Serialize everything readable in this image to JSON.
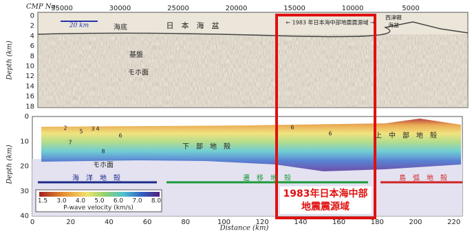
{
  "top_panel": {
    "x_axis_label": "CMP No.",
    "x_ticks": [
      35000,
      30000,
      25000,
      20000,
      15000,
      10000,
      5000
    ],
    "y_axis_label": "Depth (km)",
    "y_ticks": [
      0,
      2,
      4,
      6,
      8,
      10,
      12,
      14,
      16,
      18
    ],
    "scale_bar": "20 km",
    "labels": {
      "seafloor": "海底",
      "basin": "日　本　海　盆",
      "basement": "基盤",
      "moho": "モホ面",
      "source_area": "← 1983 年日本海中部地震震源域 →",
      "west_tsugaru": "西津軽",
      "west_tsugaru_2": "海盆"
    }
  },
  "bottom_panel": {
    "x_axis_label": "Distance (km)",
    "x_ticks": [
      0,
      20,
      40,
      60,
      80,
      100,
      120,
      140,
      160,
      180,
      200,
      220
    ],
    "y_axis_label": "Depth (km)",
    "y_ticks": [
      0,
      10,
      20,
      30,
      40
    ],
    "layer_numbers": [
      "2",
      "5",
      "3",
      "4",
      "6",
      "7",
      "8",
      "6",
      "6"
    ],
    "labels": {
      "oceanic_crust": "海　洋　地　殻",
      "transitional_crust": "遷　移　地　殻",
      "arc_crust": "島　弧　地　殻",
      "lower_crust": "下　部　地　殻",
      "upper_crust": "上　中　部　地　殻",
      "moho": "モホ面"
    },
    "colorbar": {
      "ticks": [
        "1.5",
        "3.0",
        "4.0",
        "5.0",
        "6.0",
        "7.0",
        "8.0"
      ],
      "label": "P-wave velocity (km/s)"
    }
  },
  "highlight": {
    "line1": "1983年日本海中部",
    "line2": "地震震源域"
  }
}
